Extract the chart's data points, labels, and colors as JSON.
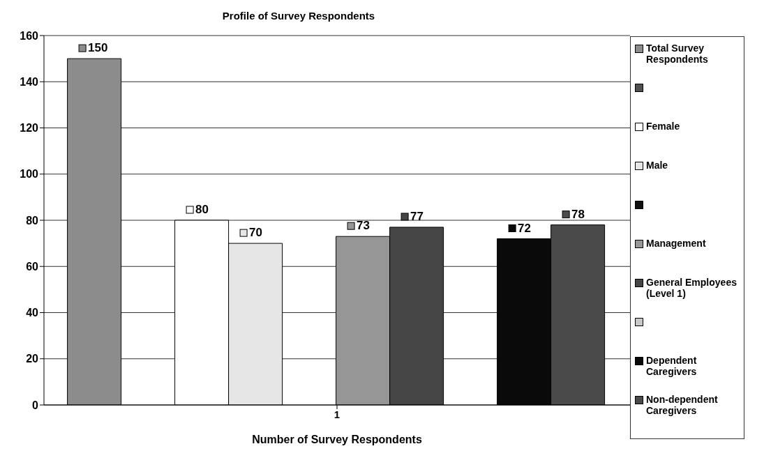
{
  "chart_data": {
    "type": "bar",
    "title": "Profile of Survey Respondents",
    "xlabel": "Number of Survey Respondents",
    "categories": [
      "1"
    ],
    "series": [
      {
        "name": "Total Survey Respondents",
        "color": "#8c8c8c",
        "values": [
          150
        ]
      },
      {
        "color": "#505050",
        "values": [
          null
        ]
      },
      {
        "name": "Female",
        "color": "#ffffff",
        "values": [
          80
        ]
      },
      {
        "name": "Male",
        "color": "#e6e6e6",
        "values": [
          70
        ]
      },
      {
        "color": "#111111",
        "values": [
          null
        ]
      },
      {
        "name": "Management",
        "color": "#969696",
        "values": [
          73
        ]
      },
      {
        "name": "General Employees (Level 1)",
        "color": "#454545",
        "values": [
          77
        ]
      },
      {
        "color": "#c8c8c8",
        "values": [
          null
        ]
      },
      {
        "name": "Dependent Caregivers",
        "color": "#0a0a0a",
        "values": [
          72
        ]
      },
      {
        "name": "Non-dependent Caregivers",
        "color": "#4a4a4a",
        "values": [
          78
        ]
      }
    ],
    "ylim": [
      0,
      160
    ],
    "yticks": [
      0,
      20,
      40,
      60,
      80,
      100,
      120,
      140,
      160
    ],
    "grid": "y",
    "legend": "right",
    "data_labels": true
  }
}
